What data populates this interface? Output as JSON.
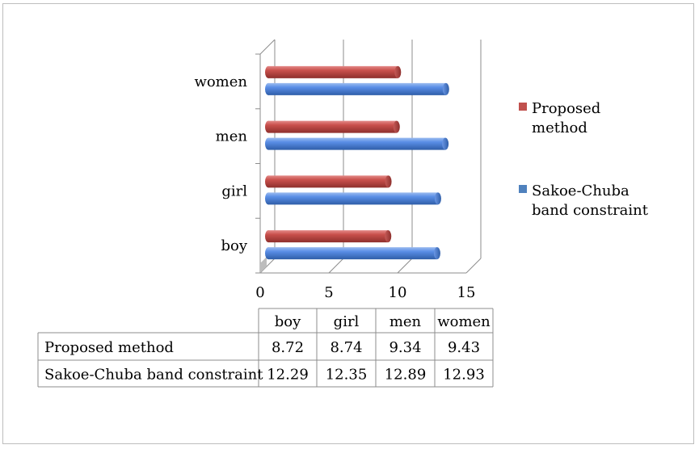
{
  "chart_data": {
    "type": "bar",
    "orientation": "horizontal",
    "style": "3d-cylinder",
    "categories": [
      "boy",
      "girl",
      "men",
      "women"
    ],
    "series": [
      {
        "name": "Proposed method",
        "legend_label_lines": [
          "Proposed",
          "method"
        ],
        "color": "#c0504d",
        "values": [
          8.72,
          8.74,
          9.34,
          9.43
        ]
      },
      {
        "name": "Sakoe-Chuba band constraint",
        "legend_label_lines": [
          "Sakoe-Chuba",
          "band constraint"
        ],
        "color": "#4f81bd",
        "values": [
          12.29,
          12.35,
          12.89,
          12.93
        ]
      }
    ],
    "xlim": [
      0,
      15
    ],
    "x_ticks": [
      "0",
      "5",
      "10",
      "15"
    ],
    "grid": true,
    "legend_position": "right",
    "data_table": {
      "column_headers": [
        "boy",
        "girl",
        "men",
        "women"
      ],
      "rows": [
        {
          "label": "Proposed method",
          "values": [
            "8.72",
            "8.74",
            "9.34",
            "9.43"
          ]
        },
        {
          "label": "Sakoe-Chuba band constraint",
          "values": [
            "12.29",
            "12.35",
            "12.89",
            "12.93"
          ]
        }
      ]
    }
  }
}
